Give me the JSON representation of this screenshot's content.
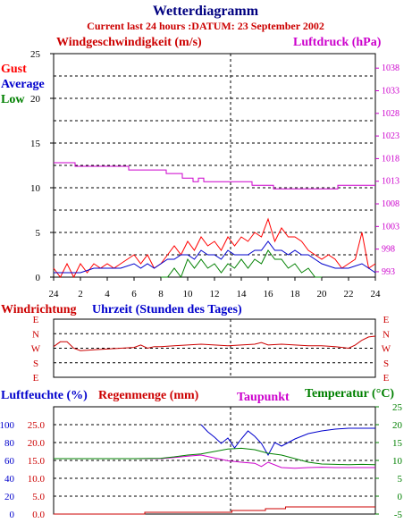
{
  "header": {
    "title": "Wetterdiagramm",
    "subtitle": "Current last 24 hours :DATUM: 23 September 2002"
  },
  "colors": {
    "gust": "#ff0000",
    "average": "#0000cc",
    "low": "#008000",
    "pressure": "#cc00cc",
    "direction": "#cc0000",
    "humidity": "#0000cc",
    "rain": "#cc0000",
    "dewpoint": "#cc00cc",
    "temperature": "#008000"
  },
  "chart_data": [
    {
      "type": "line",
      "id": "wind",
      "title": "Windgeschwindigkeit (m/s)",
      "y2label": "Luftdruck (hPa)",
      "xlabel": "Uhrzeit (Stunden des Tages)",
      "legend": [
        "Gust",
        "Average",
        "Low"
      ],
      "x_tick_labels": [
        "24",
        "2",
        "4",
        "6",
        "8",
        "10",
        "12",
        "14",
        "16",
        "18",
        "20",
        "22",
        "24"
      ],
      "y_ticks": [
        0,
        5,
        10,
        15,
        20,
        25
      ],
      "y2_ticks": [
        993,
        998,
        1003,
        1008,
        1013,
        1018,
        1023,
        1028,
        1033,
        1038
      ],
      "ylim": [
        0,
        25
      ],
      "y2lim": [
        991.8,
        1041.2
      ],
      "xlim": [
        0,
        24
      ],
      "grid": true,
      "series": [
        {
          "name": "Gust",
          "x": [
            0,
            0.5,
            1,
            1.5,
            2,
            2.5,
            3,
            3.5,
            4,
            4.5,
            5,
            5.5,
            6,
            6.5,
            7,
            7.5,
            8,
            8.5,
            9,
            9.5,
            10,
            10.5,
            11,
            11.5,
            12,
            12.5,
            13,
            13.5,
            14,
            14.5,
            15,
            15.5,
            16,
            16.5,
            17,
            17.5,
            18,
            18.5,
            19,
            19.5,
            20,
            20.5,
            21,
            21.5,
            22,
            22.5,
            23,
            23.5,
            24
          ],
          "values": [
            1,
            0,
            1.5,
            0,
            1.5,
            0.5,
            1.5,
            1,
            1.5,
            1,
            1.5,
            2,
            2.5,
            1.5,
            2.5,
            1,
            1.5,
            2.5,
            3.5,
            2.5,
            4,
            3,
            4.5,
            3.5,
            4,
            3,
            4.5,
            3.5,
            4.5,
            4,
            5,
            4.5,
            6.5,
            4,
            5.5,
            4.5,
            4.5,
            4,
            3,
            2.5,
            2,
            2.5,
            2,
            1,
            1.5,
            2,
            5,
            1,
            1.5
          ]
        },
        {
          "name": "Average",
          "x": [
            0,
            1,
            2,
            3,
            4,
            5,
            6,
            6.5,
            7,
            7.5,
            8,
            8.5,
            9,
            9.5,
            10,
            10.5,
            11,
            11.5,
            12,
            12.5,
            13,
            13.5,
            14,
            14.5,
            15,
            15.5,
            16,
            16.5,
            17,
            17.5,
            18,
            18.5,
            19,
            19.5,
            20,
            21,
            22,
            23,
            24
          ],
          "values": [
            0.5,
            0.5,
            0.5,
            1,
            1,
            1,
            1.5,
            1,
            1.5,
            1,
            1.5,
            2,
            2,
            2.5,
            2.5,
            2,
            3,
            2.5,
            2.5,
            2,
            3,
            2.5,
            2.5,
            2.5,
            3,
            3,
            4,
            3,
            3,
            2.5,
            3,
            2.5,
            2.5,
            2,
            1.5,
            1,
            1,
            1.5,
            0.5
          ]
        },
        {
          "name": "Low",
          "x": [
            8,
            8.5,
            9,
            9.5,
            10,
            10.5,
            11,
            11.5,
            12,
            12.5,
            13,
            13.5,
            14,
            14.5,
            15,
            15.5,
            16,
            16.5,
            17,
            17.5,
            18,
            18.5,
            19,
            19.5,
            20
          ],
          "values": [
            0,
            0,
            1,
            0,
            2,
            1,
            2,
            1,
            1.5,
            0.5,
            1.5,
            1,
            2,
            1,
            2,
            1.5,
            3,
            2,
            2,
            1,
            1.5,
            0.5,
            1,
            0,
            0
          ]
        },
        {
          "name": "Luftdruck",
          "axis": "y2",
          "x": [
            0,
            1.2,
            1.6,
            5.2,
            5.6,
            8,
            8.4,
            9.2,
            9.6,
            10,
            10.4,
            10.8,
            11.2,
            14.4,
            14.8,
            16,
            16.4,
            20.8,
            21.2,
            24
          ],
          "values": [
            1017.1,
            1017.1,
            1016.3,
            1016.3,
            1015.5,
            1015.5,
            1014.7,
            1014.7,
            1013.7,
            1013.7,
            1012.9,
            1013.7,
            1012.9,
            1012.9,
            1012.1,
            1012.1,
            1011.3,
            1011.3,
            1012.1,
            1012.1
          ]
        }
      ]
    },
    {
      "type": "line",
      "id": "direction",
      "title": "Windrichtung",
      "y_tick_labels": [
        "E",
        "N",
        "W",
        "S",
        "E"
      ],
      "ylim": [
        -180,
        180
      ],
      "y_unit": "degrees from W (N = +90, S = -90)",
      "xlim": [
        0,
        24
      ],
      "grid": true,
      "series": [
        {
          "name": "Windrichtung",
          "x": [
            0,
            0.5,
            1,
            1.5,
            2,
            3,
            4,
            5,
            6,
            6.5,
            7,
            7.5,
            8,
            9,
            10,
            11,
            12,
            13,
            14,
            15,
            15.5,
            16,
            17,
            18,
            19,
            20,
            21,
            22,
            22.5,
            23,
            23.5,
            24
          ],
          "values": [
            10,
            40,
            40,
            0,
            -15,
            -10,
            -5,
            0,
            5,
            20,
            0,
            10,
            10,
            15,
            20,
            25,
            20,
            15,
            20,
            25,
            35,
            20,
            25,
            20,
            15,
            15,
            10,
            0,
            20,
            50,
            70,
            75
          ]
        }
      ]
    },
    {
      "type": "line",
      "id": "humidity",
      "y_tick_labels_humidity": [
        0,
        20,
        40,
        60,
        80,
        100
      ],
      "y_tick_labels_rain": [
        "0.0",
        "5.0",
        "10.0",
        "15.0",
        "20.0",
        "25.0"
      ],
      "y2_ticks": [
        -5,
        0,
        5,
        10,
        15,
        20,
        25
      ],
      "ylim": [
        0,
        120
      ],
      "y2lim": [
        -5,
        25
      ],
      "xlim": [
        0,
        24
      ],
      "grid": true,
      "legend": [
        "Luftfeuchte (%)",
        "Regenmenge (mm)",
        "Taupunkt",
        "Temperatur (°C)"
      ],
      "series": [
        {
          "name": "Luftfeuchte (%)",
          "x": [
            11,
            11.5,
            12,
            12.5,
            13,
            13.5,
            14,
            14.5,
            15,
            15.5,
            16,
            16.5,
            17,
            17.5,
            18,
            19,
            20,
            21,
            22,
            23,
            24
          ],
          "values": [
            100,
            92,
            86,
            79,
            85,
            74,
            84,
            93,
            87,
            79,
            66,
            80,
            76,
            80,
            84,
            90,
            93,
            95,
            96,
            96,
            96
          ]
        },
        {
          "name": "Regenmenge (mm)",
          "axis": "rain",
          "x": [
            0,
            6.5,
            6.8,
            13,
            13.3,
            15.5,
            15.8,
            17,
            17.3,
            24
          ],
          "values": [
            0,
            0,
            0.5,
            0.5,
            1.0,
            1.0,
            1.5,
            1.5,
            2.0,
            2.0
          ]
        },
        {
          "name": "Taupunkt",
          "axis": "y2",
          "x": [
            0,
            8,
            9,
            10,
            11,
            12,
            13,
            14,
            15,
            15.5,
            16,
            17,
            18,
            19,
            20,
            21,
            22,
            23,
            24
          ],
          "values": [
            10.5,
            10.5,
            10.8,
            11.2,
            11.5,
            10.7,
            9.9,
            9.5,
            9.2,
            8.3,
            9.5,
            8.0,
            7.8,
            8.0,
            8.1,
            8.0,
            8.0,
            8.0,
            8.0
          ]
        },
        {
          "name": "Temperatur (°C)",
          "axis": "y2",
          "x": [
            0,
            6,
            8,
            9,
            10,
            11,
            12,
            13,
            14,
            15,
            16,
            17,
            18,
            19,
            20,
            21,
            22,
            23,
            24
          ],
          "values": [
            10.5,
            10.5,
            10.6,
            11.0,
            11.5,
            11.8,
            12.5,
            13.2,
            13.4,
            13.0,
            12.0,
            11.5,
            10.5,
            9.5,
            9.0,
            8.9,
            8.8,
            8.9,
            8.8
          ]
        }
      ]
    }
  ]
}
